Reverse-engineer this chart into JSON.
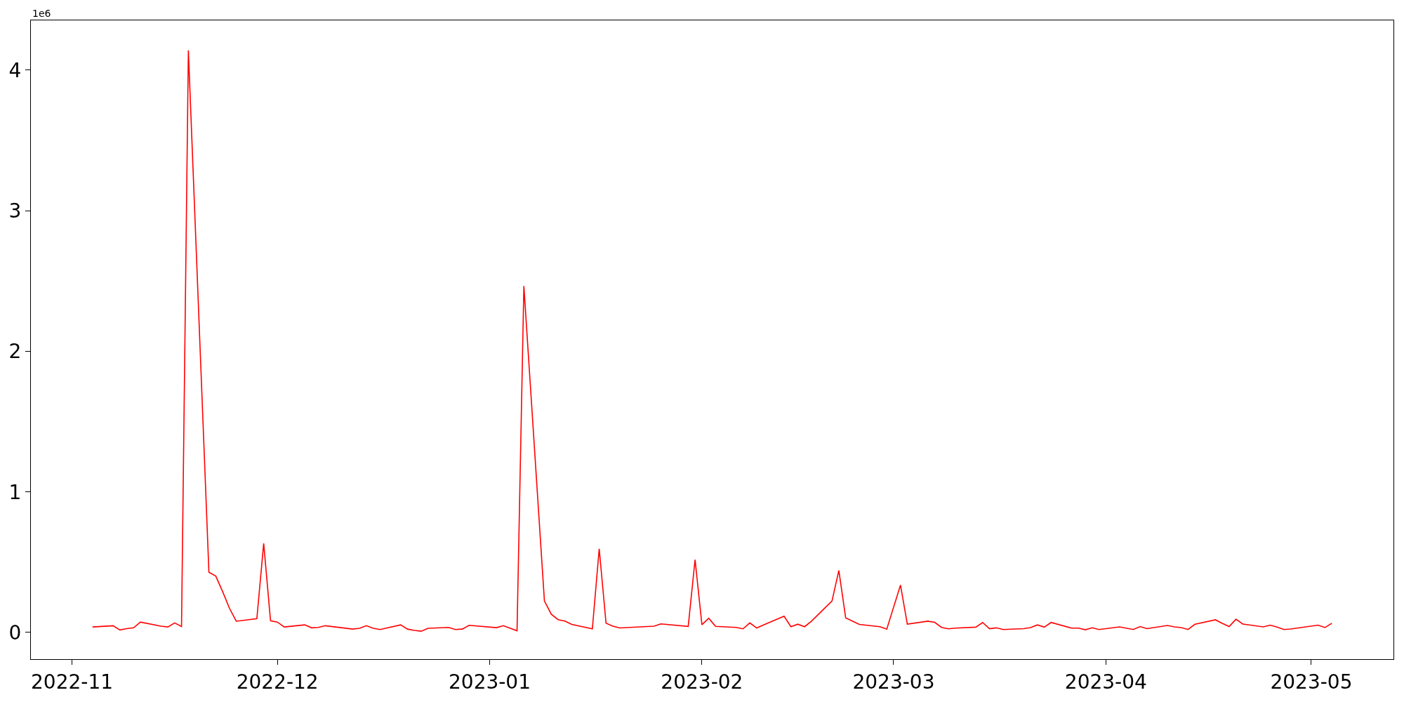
{
  "chart_data": {
    "type": "line",
    "x": [
      "2022-11-04",
      "2022-11-07",
      "2022-11-08",
      "2022-11-09",
      "2022-11-10",
      "2022-11-11",
      "2022-11-14",
      "2022-11-15",
      "2022-11-16",
      "2022-11-17",
      "2022-11-18",
      "2022-11-21",
      "2022-11-22",
      "2022-11-23",
      "2022-11-24",
      "2022-11-25",
      "2022-11-28",
      "2022-11-29",
      "2022-11-30",
      "2022-12-01",
      "2022-12-02",
      "2022-12-05",
      "2022-12-06",
      "2022-12-07",
      "2022-12-08",
      "2022-12-12",
      "2022-12-13",
      "2022-12-14",
      "2022-12-15",
      "2022-12-16",
      "2022-12-19",
      "2022-12-20",
      "2022-12-21",
      "2022-12-22",
      "2022-12-23",
      "2022-12-26",
      "2022-12-27",
      "2022-12-28",
      "2022-12-29",
      "2023-01-02",
      "2023-01-03",
      "2023-01-05",
      "2023-01-06",
      "2023-01-09",
      "2023-01-10",
      "2023-01-11",
      "2023-01-12",
      "2023-01-13",
      "2023-01-16",
      "2023-01-17",
      "2023-01-18",
      "2023-01-19",
      "2023-01-20",
      "2023-01-25",
      "2023-01-26",
      "2023-01-30",
      "2023-01-31",
      "2023-02-01",
      "2023-02-02",
      "2023-02-03",
      "2023-02-06",
      "2023-02-07",
      "2023-02-08",
      "2023-02-09",
      "2023-02-10",
      "2023-02-13",
      "2023-02-14",
      "2023-02-15",
      "2023-02-16",
      "2023-02-17",
      "2023-02-20",
      "2023-02-21",
      "2023-02-22",
      "2023-02-24",
      "2023-02-27",
      "2023-02-28",
      "2023-03-02",
      "2023-03-03",
      "2023-03-06",
      "2023-03-07",
      "2023-03-08",
      "2023-03-09",
      "2023-03-10",
      "2023-03-13",
      "2023-03-14",
      "2023-03-15",
      "2023-03-16",
      "2023-03-17",
      "2023-03-20",
      "2023-03-21",
      "2023-03-22",
      "2023-03-23",
      "2023-03-24",
      "2023-03-27",
      "2023-03-28",
      "2023-03-29",
      "2023-03-30",
      "2023-03-31",
      "2023-04-03",
      "2023-04-05",
      "2023-04-06",
      "2023-04-07",
      "2023-04-10",
      "2023-04-11",
      "2023-04-12",
      "2023-04-13",
      "2023-04-14",
      "2023-04-17",
      "2023-04-18",
      "2023-04-19",
      "2023-04-20",
      "2023-04-21",
      "2023-04-24",
      "2023-04-25",
      "2023-04-26",
      "2023-04-27",
      "2023-04-28",
      "2023-05-02",
      "2023-05-03",
      "2023-05-04"
    ],
    "series": [
      {
        "color": "#ff0000",
        "values": [
          0.039,
          0.048,
          0.018,
          0.027,
          0.033,
          0.074,
          0.045,
          0.039,
          0.068,
          0.042,
          4.14,
          0.428,
          0.401,
          0.291,
          0.172,
          0.08,
          0.098,
          0.633,
          0.083,
          0.074,
          0.039,
          0.054,
          0.033,
          0.036,
          0.048,
          0.024,
          0.03,
          0.048,
          0.03,
          0.021,
          0.054,
          0.024,
          0.015,
          0.009,
          0.03,
          0.036,
          0.021,
          0.024,
          0.051,
          0.034,
          0.048,
          0.012,
          2.464,
          0.224,
          0.13,
          0.091,
          0.081,
          0.057,
          0.026,
          0.595,
          0.066,
          0.045,
          0.032,
          0.045,
          0.061,
          0.043,
          0.518,
          0.055,
          0.101,
          0.043,
          0.036,
          0.026,
          0.068,
          0.032,
          0.053,
          0.116,
          0.041,
          0.059,
          0.041,
          0.08,
          0.224,
          0.441,
          0.103,
          0.057,
          0.041,
          0.024,
          0.337,
          0.059,
          0.08,
          0.072,
          0.036,
          0.026,
          0.031,
          0.038,
          0.071,
          0.027,
          0.033,
          0.021,
          0.027,
          0.035,
          0.054,
          0.038,
          0.071,
          0.031,
          0.031,
          0.019,
          0.033,
          0.021,
          0.04,
          0.021,
          0.042,
          0.027,
          0.05,
          0.04,
          0.035,
          0.021,
          0.058,
          0.09,
          0.065,
          0.042,
          0.094,
          0.06,
          0.04,
          0.052,
          0.038,
          0.021,
          0.025,
          0.052,
          0.035,
          0.065
        ]
      }
    ],
    "xlim": [
      "2022-10-26",
      "2023-05-13"
    ],
    "xticks": [
      {
        "value": "2022-11-01",
        "label": "2022-11"
      },
      {
        "value": "2022-12-01",
        "label": "2022-12"
      },
      {
        "value": "2023-01-01",
        "label": "2023-01"
      },
      {
        "value": "2023-02-01",
        "label": "2023-02"
      },
      {
        "value": "2023-03-01",
        "label": "2023-03"
      },
      {
        "value": "2023-04-01",
        "label": "2023-04"
      },
      {
        "value": "2023-05-01",
        "label": "2023-05"
      }
    ],
    "ylim": [
      -0.19,
      4.354
    ],
    "yticks": [
      0,
      1,
      2,
      3,
      4
    ],
    "annotations": [
      "1e6"
    ],
    "marker": "none",
    "line_style": "solid"
  }
}
